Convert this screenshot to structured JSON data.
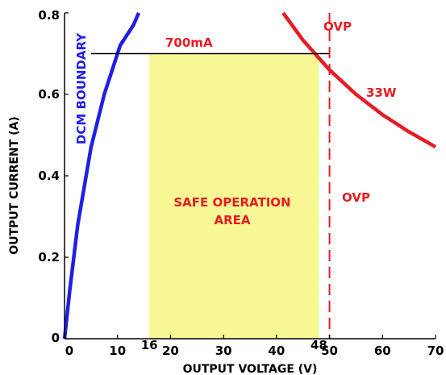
{
  "chart_data": {
    "type": "line",
    "xlabel": "OUTPUT VOLTAGE (V)",
    "ylabel": "OUTPUT CURRENT (A)",
    "xlim": [
      0,
      70
    ],
    "ylim": [
      0,
      0.8
    ],
    "xticks": [
      "0",
      "10",
      "20",
      "30",
      "40",
      "50",
      "60",
      "70"
    ],
    "yticks": [
      "0",
      "0.2",
      "0.4",
      "0.6",
      "0.8"
    ],
    "extra_xticks": [
      "16",
      "48"
    ],
    "series": [
      {
        "label": "DCM BOUNDARY",
        "color": "#1f1fe6",
        "x": [
          0,
          1,
          2.5,
          5,
          7.5,
          10.5,
          13,
          14
        ],
        "y": [
          0.0,
          0.12,
          0.28,
          0.47,
          0.6,
          0.72,
          0.77,
          0.8
        ]
      },
      {
        "label": "33W",
        "color": "#e51c23",
        "x": [
          41.25,
          45,
          50,
          55,
          60,
          65,
          70
        ],
        "y": [
          0.8,
          0.733,
          0.66,
          0.6,
          0.55,
          0.508,
          0.471
        ]
      }
    ],
    "limit_line": {
      "label": "700mA",
      "y": 0.7,
      "x": [
        5,
        50
      ],
      "color": "#000000"
    },
    "ovp_line": {
      "label": "OVP",
      "x": 50,
      "color": "#e51c23"
    },
    "safe_area": {
      "label": [
        "SAFE OPERATION",
        "AREA"
      ],
      "x": [
        16,
        48
      ],
      "y": [
        0,
        0.7
      ],
      "color": "#f7f795"
    }
  }
}
